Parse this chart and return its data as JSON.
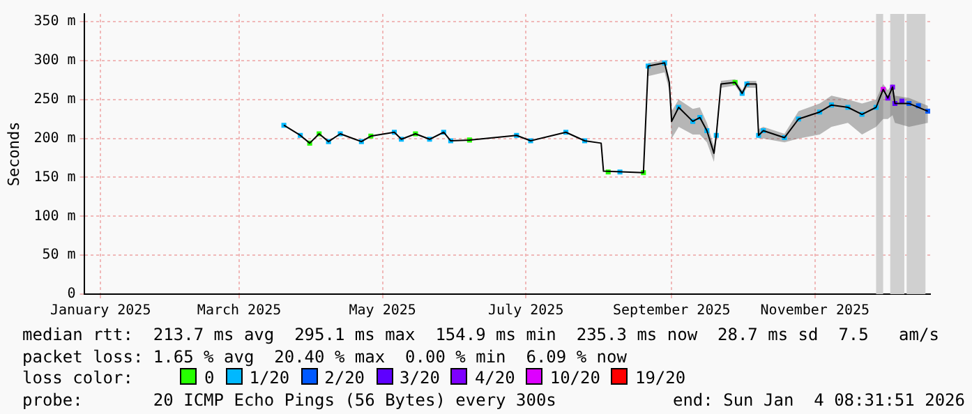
{
  "chart_data": {
    "type": "line",
    "ylabel": "Seconds",
    "xlim": [
      "2024-12-25",
      "2025-12-20"
    ],
    "xticks": [
      {
        "value": "2025-01-01",
        "label": "January 2025"
      },
      {
        "value": "2025-03-01",
        "label": "March 2025"
      },
      {
        "value": "2025-05-01",
        "label": "May 2025"
      },
      {
        "value": "2025-07-01",
        "label": "July 2025"
      },
      {
        "value": "2025-09-01",
        "label": "September 2025"
      },
      {
        "value": "2025-11-01",
        "label": "November 2025"
      }
    ],
    "ylim": [
      0,
      360
    ],
    "yticks": [
      0,
      {
        "value": 50,
        "label": "50 m"
      },
      {
        "value": 100,
        "label": "100 m"
      },
      {
        "value": 150,
        "label": "150 m"
      },
      {
        "value": 200,
        "label": "200 m"
      },
      {
        "value": 250,
        "label": "250 m"
      },
      {
        "value": 300,
        "label": "300 m"
      },
      {
        "value": 350,
        "label": "350 m"
      }
    ],
    "grid": true,
    "legend": "bottom",
    "legend_title": "loss color:",
    "marker": "none",
    "series": [
      {
        "color": "#000000",
        "x": [
          "2025-03-20",
          "2025-03-27",
          "2025-03-31",
          "2025-04-04",
          "2025-04-08",
          "2025-04-13",
          "2025-04-22",
          "2025-04-26",
          "2025-05-06",
          "2025-05-09",
          "2025-05-15",
          "2025-05-21",
          "2025-05-27",
          "2025-05-30",
          "2025-06-07",
          "2025-06-27",
          "2025-07-03",
          "2025-07-18",
          "2025-07-26",
          "2025-08-02",
          "2025-08-03",
          "2025-08-20",
          "2025-08-22",
          "2025-08-29",
          "2025-08-31",
          "2025-09-01",
          "2025-09-04",
          "2025-09-10",
          "2025-09-13",
          "2025-09-16",
          "2025-09-19",
          "2025-09-20",
          "2025-09-22",
          "2025-09-28",
          "2025-10-01",
          "2025-10-03",
          "2025-10-07",
          "2025-10-08",
          "2025-10-10",
          "2025-10-19",
          "2025-10-25",
          "2025-11-03",
          "2025-11-08",
          "2025-11-15",
          "2025-11-21",
          "2025-11-27",
          "2025-11-30",
          "2025-12-02",
          "2025-12-04",
          "2025-12-05",
          "2025-12-11",
          "2025-12-19"
        ],
        "values": [
          217,
          204,
          194,
          206,
          196,
          206,
          196,
          203,
          208,
          199,
          206,
          199,
          208,
          197,
          198,
          204,
          197,
          208,
          197,
          194,
          158,
          156,
          293,
          297,
          272,
          222,
          240,
          222,
          227,
          210,
          181,
          204,
          270,
          272,
          258,
          270,
          270,
          204,
          210,
          201,
          225,
          234,
          243,
          240,
          231,
          240,
          263,
          252,
          266,
          245,
          245,
          235
        ],
        "lower": [
          null,
          null,
          null,
          null,
          null,
          null,
          null,
          null,
          null,
          null,
          null,
          null,
          null,
          null,
          null,
          null,
          null,
          null,
          null,
          null,
          null,
          null,
          280,
          285,
          262,
          200,
          215,
          205,
          205,
          195,
          170,
          198,
          265,
          268,
          255,
          265,
          265,
          200,
          200,
          195,
          200,
          205,
          215,
          220,
          205,
          215,
          225,
          225,
          230,
          220,
          215,
          220
        ],
        "upper": [
          null,
          null,
          null,
          null,
          null,
          null,
          null,
          null,
          null,
          null,
          null,
          null,
          null,
          null,
          null,
          null,
          null,
          null,
          null,
          null,
          null,
          null,
          297,
          300,
          278,
          235,
          250,
          238,
          240,
          220,
          190,
          210,
          274,
          276,
          262,
          274,
          274,
          212,
          215,
          206,
          235,
          245,
          255,
          250,
          245,
          250,
          270,
          262,
          270,
          255,
          252,
          242
        ]
      },
      {
        "name": "0",
        "color": "#26ff00",
        "type": "scatter",
        "marker": "square",
        "x": [
          "2025-03-31",
          "2025-04-04",
          "2025-04-26",
          "2025-05-15",
          "2025-06-07",
          "2025-08-05",
          "2025-08-20",
          "2025-09-28"
        ],
        "values": [
          194,
          206,
          203,
          206,
          198,
          157,
          156,
          272
        ]
      },
      {
        "name": "1/20",
        "color": "#00b8ff",
        "type": "scatter",
        "marker": "square",
        "x": [
          "2025-03-20",
          "2025-03-27",
          "2025-04-08",
          "2025-04-13",
          "2025-04-22",
          "2025-05-06",
          "2025-05-09",
          "2025-05-21",
          "2025-05-27",
          "2025-05-30",
          "2025-06-27",
          "2025-07-03",
          "2025-07-18",
          "2025-07-26",
          "2025-08-10",
          "2025-08-22",
          "2025-08-29",
          "2025-09-04",
          "2025-09-10",
          "2025-09-13",
          "2025-09-16",
          "2025-09-20",
          "2025-10-01",
          "2025-10-03",
          "2025-10-08",
          "2025-10-10",
          "2025-10-19",
          "2025-10-25",
          "2025-11-03",
          "2025-11-08",
          "2025-11-15",
          "2025-11-21",
          "2025-11-27"
        ],
        "values": [
          217,
          204,
          196,
          206,
          196,
          208,
          199,
          199,
          208,
          197,
          204,
          197,
          208,
          197,
          157,
          293,
          297,
          240,
          222,
          227,
          210,
          204,
          258,
          270,
          204,
          210,
          201,
          225,
          234,
          243,
          240,
          231,
          240
        ]
      },
      {
        "name": "2/20",
        "color": "#0059ff",
        "type": "scatter",
        "marker": "square",
        "x": [
          "2025-12-11",
          "2025-12-15",
          "2025-12-19"
        ],
        "values": [
          245,
          242,
          235
        ]
      },
      {
        "name": "3/20",
        "color": "#5e00ff",
        "type": "scatter",
        "marker": "square",
        "x": [
          "2025-12-05",
          "2025-12-08"
        ],
        "values": [
          245,
          248
        ]
      },
      {
        "name": "4/20",
        "color": "#7e00ff",
        "type": "scatter",
        "marker": "square",
        "x": [
          "2025-12-02",
          "2025-12-04"
        ],
        "values": [
          252,
          266
        ]
      },
      {
        "name": "10/20",
        "color": "#dd00ff",
        "type": "scatter",
        "marker": "square",
        "x": [
          "2025-11-30"
        ],
        "values": [
          263
        ]
      },
      {
        "name": "19/20",
        "color": "#ff0000",
        "type": "scatter",
        "marker": "square"
      }
    ],
    "bands": [
      {
        "axis": "x",
        "from": "2025-11-27",
        "to": "2025-11-30",
        "color": "#d0d0d0"
      },
      {
        "axis": "x",
        "from": "2025-12-03",
        "to": "2025-12-09",
        "color": "#d0d0d0"
      },
      {
        "axis": "x",
        "from": "2025-12-10",
        "to": "2025-12-18",
        "color": "#d0d0d0"
      }
    ],
    "annotations": [
      "median rtt:  213.7 ms avg  295.1 ms max  154.9 ms min  235.3 ms now  28.7 ms sd  7.5   am/s",
      "packet loss: 1.65 % avg  20.40 % max  0.00 % min  6.09 % now",
      "probe:       20 ICMP Echo Pings (56 Bytes) every 300s",
      "end: Sun Jan  4 08:31:51 2026"
    ]
  }
}
